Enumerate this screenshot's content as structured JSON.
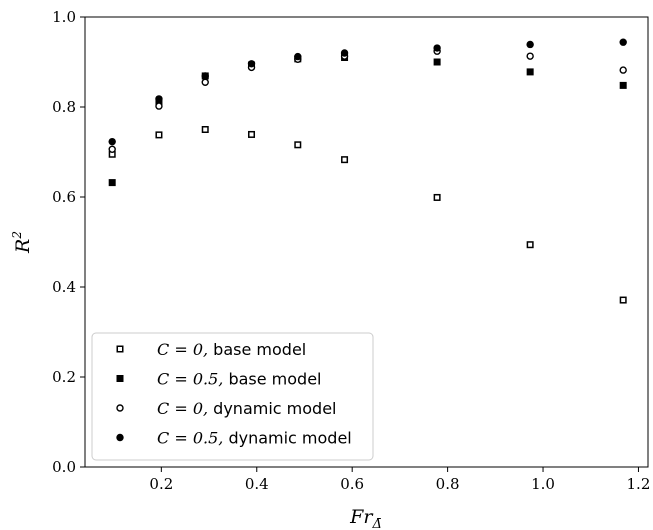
{
  "chart_data": {
    "type": "scatter",
    "title": "",
    "xlabel": "Fr",
    "xlabel_sub": "Δ̄",
    "ylabel": "R",
    "ylabel_sup": "2",
    "xlim": [
      0.04,
      1.22
    ],
    "ylim": [
      0.0,
      1.0
    ],
    "xticks": [
      0.2,
      0.4,
      0.6,
      0.8,
      1.0,
      1.2
    ],
    "xtick_labels": [
      "0.2",
      "0.4",
      "0.6",
      "0.8",
      "1.0",
      "1.2"
    ],
    "yticks": [
      0.0,
      0.2,
      0.4,
      0.6,
      0.8,
      1.0
    ],
    "ytick_labels": [
      "0.0",
      "0.2",
      "0.4",
      "0.6",
      "0.8",
      "1.0"
    ],
    "grid": false,
    "legend_position": "lower-left",
    "x": [
      0.097,
      0.195,
      0.292,
      0.389,
      0.486,
      0.584,
      0.778,
      0.973,
      1.168
    ],
    "series": [
      {
        "name": "C = 0, base model",
        "legend_math": "C = 0,",
        "legend_text": " base model",
        "marker": "square-open",
        "values": [
          0.695,
          0.738,
          0.75,
          0.739,
          0.716,
          0.683,
          0.599,
          0.494,
          0.371
        ]
      },
      {
        "name": "C = 0.5, base model",
        "legend_math": "C = 0.5,",
        "legend_text": " base model",
        "marker": "square-filled",
        "values": [
          0.632,
          0.81,
          0.869,
          0.893,
          0.907,
          0.91,
          0.9,
          0.878,
          0.848
        ]
      },
      {
        "name": "C = 0, dynamic model",
        "legend_math": "C = 0,",
        "legend_text": " dynamic model",
        "marker": "circle-open",
        "values": [
          0.706,
          0.802,
          0.855,
          0.888,
          0.906,
          0.913,
          0.924,
          0.913,
          0.882
        ]
      },
      {
        "name": "C = 0.5, dynamic model",
        "legend_math": "C = 0.5,",
        "legend_text": " dynamic model",
        "marker": "circle-filled",
        "values": [
          0.723,
          0.818,
          0.869,
          0.896,
          0.912,
          0.92,
          0.931,
          0.939,
          0.944
        ]
      }
    ]
  },
  "colors": {
    "marker": "#000000",
    "axes": "#000000",
    "background": "#ffffff",
    "legend_border": "#cccccc"
  }
}
